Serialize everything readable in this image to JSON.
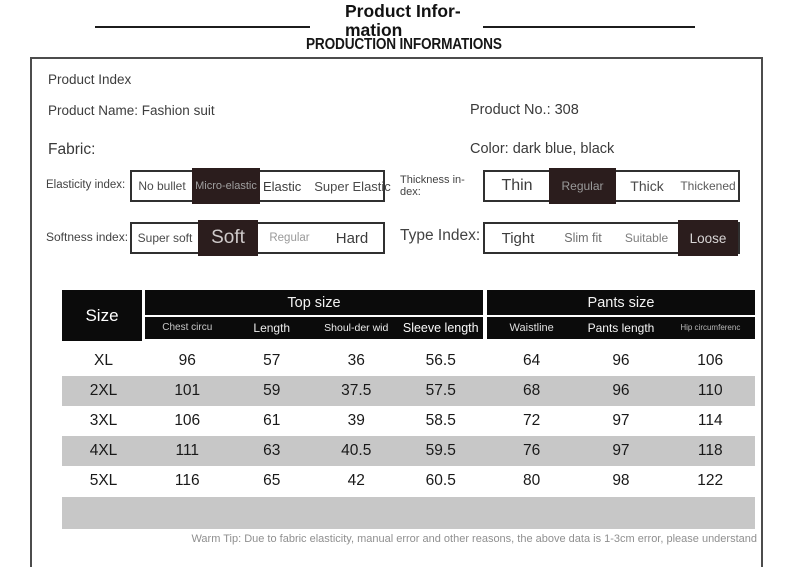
{
  "colors": {
    "dark_button_bg": "#2b1d1d",
    "table_header_bg": "#0b0b0b",
    "row_alt_bg": "#c7c7c7",
    "box_border": "#4c4c4c"
  },
  "header": {
    "title_line1": "Product Infor-",
    "title_line2": "mation",
    "subtitle": "PRODUCTION INFORMATIONS"
  },
  "product": {
    "index_label": "Product Index",
    "name": "Product Name: Fashion suit",
    "number": "Product No.: 308",
    "fabric_label": "Fabric:",
    "color": "Color: dark blue, black"
  },
  "indexes": {
    "elasticity": {
      "label": "Elasticity index:",
      "options": [
        "No bullet",
        "Micro-elastic",
        "Elastic",
        "Super Elastic"
      ],
      "selected": "Micro-elastic"
    },
    "thickness": {
      "label": "Thickness in-dex:",
      "options": [
        "Thin",
        "Regular",
        "Thick",
        "Thickened"
      ],
      "selected": "Regular"
    },
    "softness": {
      "label": "Softness index:",
      "options": [
        "Super soft",
        "Soft",
        "Regular",
        "Hard"
      ],
      "selected": "Soft"
    },
    "type": {
      "label": "Type Index:",
      "options": [
        "Tight",
        "Slim fit",
        "Suitable",
        "Loose"
      ],
      "selected": "Loose"
    }
  },
  "size_table": {
    "size_header": "Size",
    "group_top": "Top size",
    "group_pants": "Pants size",
    "columns_top": [
      "Chest circu",
      "Length",
      "Shoul-der wid",
      "Sleeve length"
    ],
    "columns_pants": [
      "Waistline",
      "Pants length",
      "Hip circumferenc"
    ],
    "rows": [
      {
        "size": "XL",
        "values": [
          "96",
          "57",
          "36",
          "56.5",
          "64",
          "96",
          "106"
        ]
      },
      {
        "size": "2XL",
        "values": [
          "101",
          "59",
          "37.5",
          "57.5",
          "68",
          "96",
          "110"
        ]
      },
      {
        "size": "3XL",
        "values": [
          "106",
          "61",
          "39",
          "58.5",
          "72",
          "97",
          "114"
        ]
      },
      {
        "size": "4XL",
        "values": [
          "111",
          "63",
          "40.5",
          "59.5",
          "76",
          "97",
          "118"
        ]
      },
      {
        "size": "5XL",
        "values": [
          "116",
          "65",
          "42",
          "60.5",
          "80",
          "98",
          "122"
        ]
      }
    ]
  },
  "footer": {
    "warm_tip": "Warm Tip: Due to fabric elasticity, manual error and other reasons, the above data is 1-3cm error, please understand"
  }
}
